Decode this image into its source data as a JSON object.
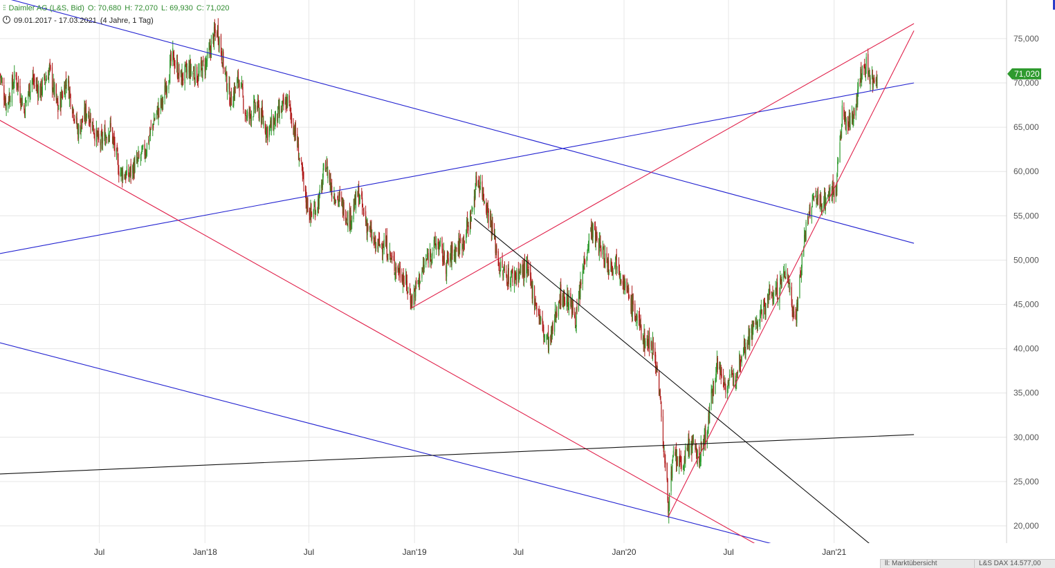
{
  "header": {
    "instrument": "Daimler AG (L&S, Bid)",
    "open": "O: 70,680",
    "high": "H: 72,070",
    "low": "L: 69,930",
    "close": "C: 71,020",
    "range": "09.01.2017 - 17.03.2021",
    "span": "(4 Jahre, 1 Tag)"
  },
  "price_badge": "71,020",
  "footer": {
    "tab1": "ll: Marktübersicht",
    "tab2": "L&S DAX 14.577,00"
  },
  "colors": {
    "up": "#2e9a2e",
    "down": "#b01a1a",
    "blue_line": "#2020d0",
    "red_line": "#e0204a",
    "black_line": "#111111",
    "grid": "#e6e6e6",
    "badge": "#2e9a2e"
  },
  "chart_data": {
    "type": "candlestick",
    "title": "Daimler AG (L&S, Bid)",
    "x_range": [
      "2017-01-09",
      "2021-03-17"
    ],
    "x_ticks": [
      "Jul",
      "Jan'18",
      "Jul",
      "Jan'19",
      "Jul",
      "Jan'20",
      "Jul",
      "Jan'21"
    ],
    "x_tick_dates": [
      "2017-07-01",
      "2018-01-01",
      "2018-07-01",
      "2019-01-01",
      "2019-07-01",
      "2020-01-01",
      "2020-07-01",
      "2021-01-01"
    ],
    "y_ticks": [
      "20,000",
      "25,000",
      "30,000",
      "35,000",
      "40,000",
      "45,000",
      "50,000",
      "55,000",
      "60,000",
      "65,000",
      "70,000",
      "75,000"
    ],
    "y_tick_values": [
      20,
      25,
      30,
      35,
      40,
      45,
      50,
      55,
      60,
      65,
      70,
      75
    ],
    "ylim": [
      16.8,
      77.6
    ],
    "grid": true,
    "last_close": 71.02,
    "close_path": [
      [
        "2017-01-09",
        71.0
      ],
      [
        "2017-01-20",
        67.5
      ],
      [
        "2017-02-05",
        70.8
      ],
      [
        "2017-02-20",
        67.0
      ],
      [
        "2017-03-05",
        70.5
      ],
      [
        "2017-03-20",
        69.0
      ],
      [
        "2017-04-05",
        71.5
      ],
      [
        "2017-04-20",
        67.0
      ],
      [
        "2017-05-05",
        70.5
      ],
      [
        "2017-05-25",
        64.5
      ],
      [
        "2017-06-10",
        67.0
      ],
      [
        "2017-07-01",
        63.0
      ],
      [
        "2017-07-20",
        65.0
      ],
      [
        "2017-08-05",
        60.0
      ],
      [
        "2017-08-20",
        59.5
      ],
      [
        "2017-09-05",
        61.0
      ],
      [
        "2017-09-20",
        62.5
      ],
      [
        "2017-10-05",
        66.0
      ],
      [
        "2017-10-20",
        68.0
      ],
      [
        "2017-11-05",
        73.0
      ],
      [
        "2017-11-20",
        70.5
      ],
      [
        "2017-12-05",
        71.5
      ],
      [
        "2017-12-20",
        70.8
      ],
      [
        "2018-01-05",
        72.5
      ],
      [
        "2018-01-15",
        75.0
      ],
      [
        "2018-01-23",
        76.0
      ],
      [
        "2018-02-05",
        71.0
      ],
      [
        "2018-02-15",
        68.0
      ],
      [
        "2018-03-01",
        70.5
      ],
      [
        "2018-03-15",
        66.0
      ],
      [
        "2018-04-01",
        67.5
      ],
      [
        "2018-04-20",
        64.5
      ],
      [
        "2018-05-10",
        66.5
      ],
      [
        "2018-05-25",
        68.0
      ],
      [
        "2018-06-10",
        63.5
      ],
      [
        "2018-06-25",
        57.0
      ],
      [
        "2018-07-05",
        55.0
      ],
      [
        "2018-07-20",
        57.0
      ],
      [
        "2018-07-30",
        61.0
      ],
      [
        "2018-08-10",
        58.0
      ],
      [
        "2018-08-25",
        56.5
      ],
      [
        "2018-09-10",
        54.5
      ],
      [
        "2018-09-25",
        57.5
      ],
      [
        "2018-10-10",
        54.0
      ],
      [
        "2018-10-25",
        51.5
      ],
      [
        "2018-11-10",
        52.0
      ],
      [
        "2018-11-25",
        49.5
      ],
      [
        "2018-12-10",
        48.5
      ],
      [
        "2018-12-27",
        45.5
      ],
      [
        "2019-01-10",
        48.0
      ],
      [
        "2019-01-25",
        50.5
      ],
      [
        "2019-02-10",
        52.0
      ],
      [
        "2019-02-25",
        49.5
      ],
      [
        "2019-03-10",
        51.0
      ],
      [
        "2019-03-25",
        52.0
      ],
      [
        "2019-04-10",
        55.0
      ],
      [
        "2019-04-20",
        59.5
      ],
      [
        "2019-05-01",
        57.5
      ],
      [
        "2019-05-15",
        54.0
      ],
      [
        "2019-05-30",
        49.0
      ],
      [
        "2019-06-15",
        48.0
      ],
      [
        "2019-07-01",
        48.5
      ],
      [
        "2019-07-15",
        49.0
      ],
      [
        "2019-08-01",
        45.0
      ],
      [
        "2019-08-15",
        41.5
      ],
      [
        "2019-08-25",
        40.5
      ],
      [
        "2019-09-10",
        46.0
      ],
      [
        "2019-09-25",
        45.5
      ],
      [
        "2019-10-10",
        43.5
      ],
      [
        "2019-10-25",
        50.5
      ],
      [
        "2019-11-05",
        53.5
      ],
      [
        "2019-11-20",
        51.5
      ],
      [
        "2019-12-05",
        49.5
      ],
      [
        "2019-12-20",
        50.0
      ],
      [
        "2020-01-05",
        46.5
      ],
      [
        "2020-01-20",
        44.0
      ],
      [
        "2020-02-05",
        41.0
      ],
      [
        "2020-02-20",
        40.5
      ],
      [
        "2020-03-01",
        36.5
      ],
      [
        "2020-03-10",
        29.0
      ],
      [
        "2020-03-18",
        22.5
      ],
      [
        "2020-03-28",
        28.0
      ],
      [
        "2020-04-10",
        26.5
      ],
      [
        "2020-04-25",
        29.5
      ],
      [
        "2020-05-10",
        27.5
      ],
      [
        "2020-05-25",
        31.0
      ],
      [
        "2020-06-10",
        38.5
      ],
      [
        "2020-06-25",
        36.0
      ],
      [
        "2020-07-10",
        36.5
      ],
      [
        "2020-07-25",
        40.0
      ],
      [
        "2020-08-10",
        42.0
      ],
      [
        "2020-08-25",
        43.5
      ],
      [
        "2020-09-10",
        46.0
      ],
      [
        "2020-09-25",
        46.5
      ],
      [
        "2020-10-10",
        49.0
      ],
      [
        "2020-10-25",
        43.0
      ],
      [
        "2020-11-10",
        52.5
      ],
      [
        "2020-11-25",
        57.0
      ],
      [
        "2020-12-10",
        56.5
      ],
      [
        "2020-12-25",
        57.5
      ],
      [
        "2021-01-05",
        58.5
      ],
      [
        "2021-01-15",
        66.5
      ],
      [
        "2021-01-25",
        65.0
      ],
      [
        "2021-02-05",
        67.0
      ],
      [
        "2021-02-15",
        70.5
      ],
      [
        "2021-02-25",
        72.0
      ],
      [
        "2021-03-10",
        70.2
      ],
      [
        "2021-03-17",
        71.02
      ]
    ],
    "trendlines": [
      {
        "color": "blue",
        "from": [
          "2016-11-15",
          80.7
        ],
        "to": [
          "2021-05-20",
          51.9
        ]
      },
      {
        "color": "blue",
        "from": [
          "2016-12-20",
          50.5
        ],
        "to": [
          "2021-05-20",
          70.0
        ]
      },
      {
        "color": "blue",
        "from": [
          "2016-12-20",
          41.0
        ],
        "to": [
          "2021-01-10",
          16.0
        ]
      },
      {
        "color": "red",
        "from": [
          "2016-12-20",
          66.5
        ],
        "to": [
          "2020-10-10",
          16.0
        ]
      },
      {
        "color": "red",
        "from": [
          "2018-12-27",
          44.6
        ],
        "to": [
          "2021-05-20",
          76.7
        ]
      },
      {
        "color": "red",
        "from": [
          "2020-03-18",
          21.0
        ],
        "to": [
          "2021-05-20",
          75.9
        ]
      },
      {
        "color": "black",
        "from": [
          "2019-04-15",
          54.7
        ],
        "to": [
          "2021-04-10",
          16.0
        ]
      },
      {
        "color": "black",
        "from": [
          "2016-12-20",
          25.8
        ],
        "to": [
          "2021-05-20",
          30.3
        ]
      }
    ]
  }
}
